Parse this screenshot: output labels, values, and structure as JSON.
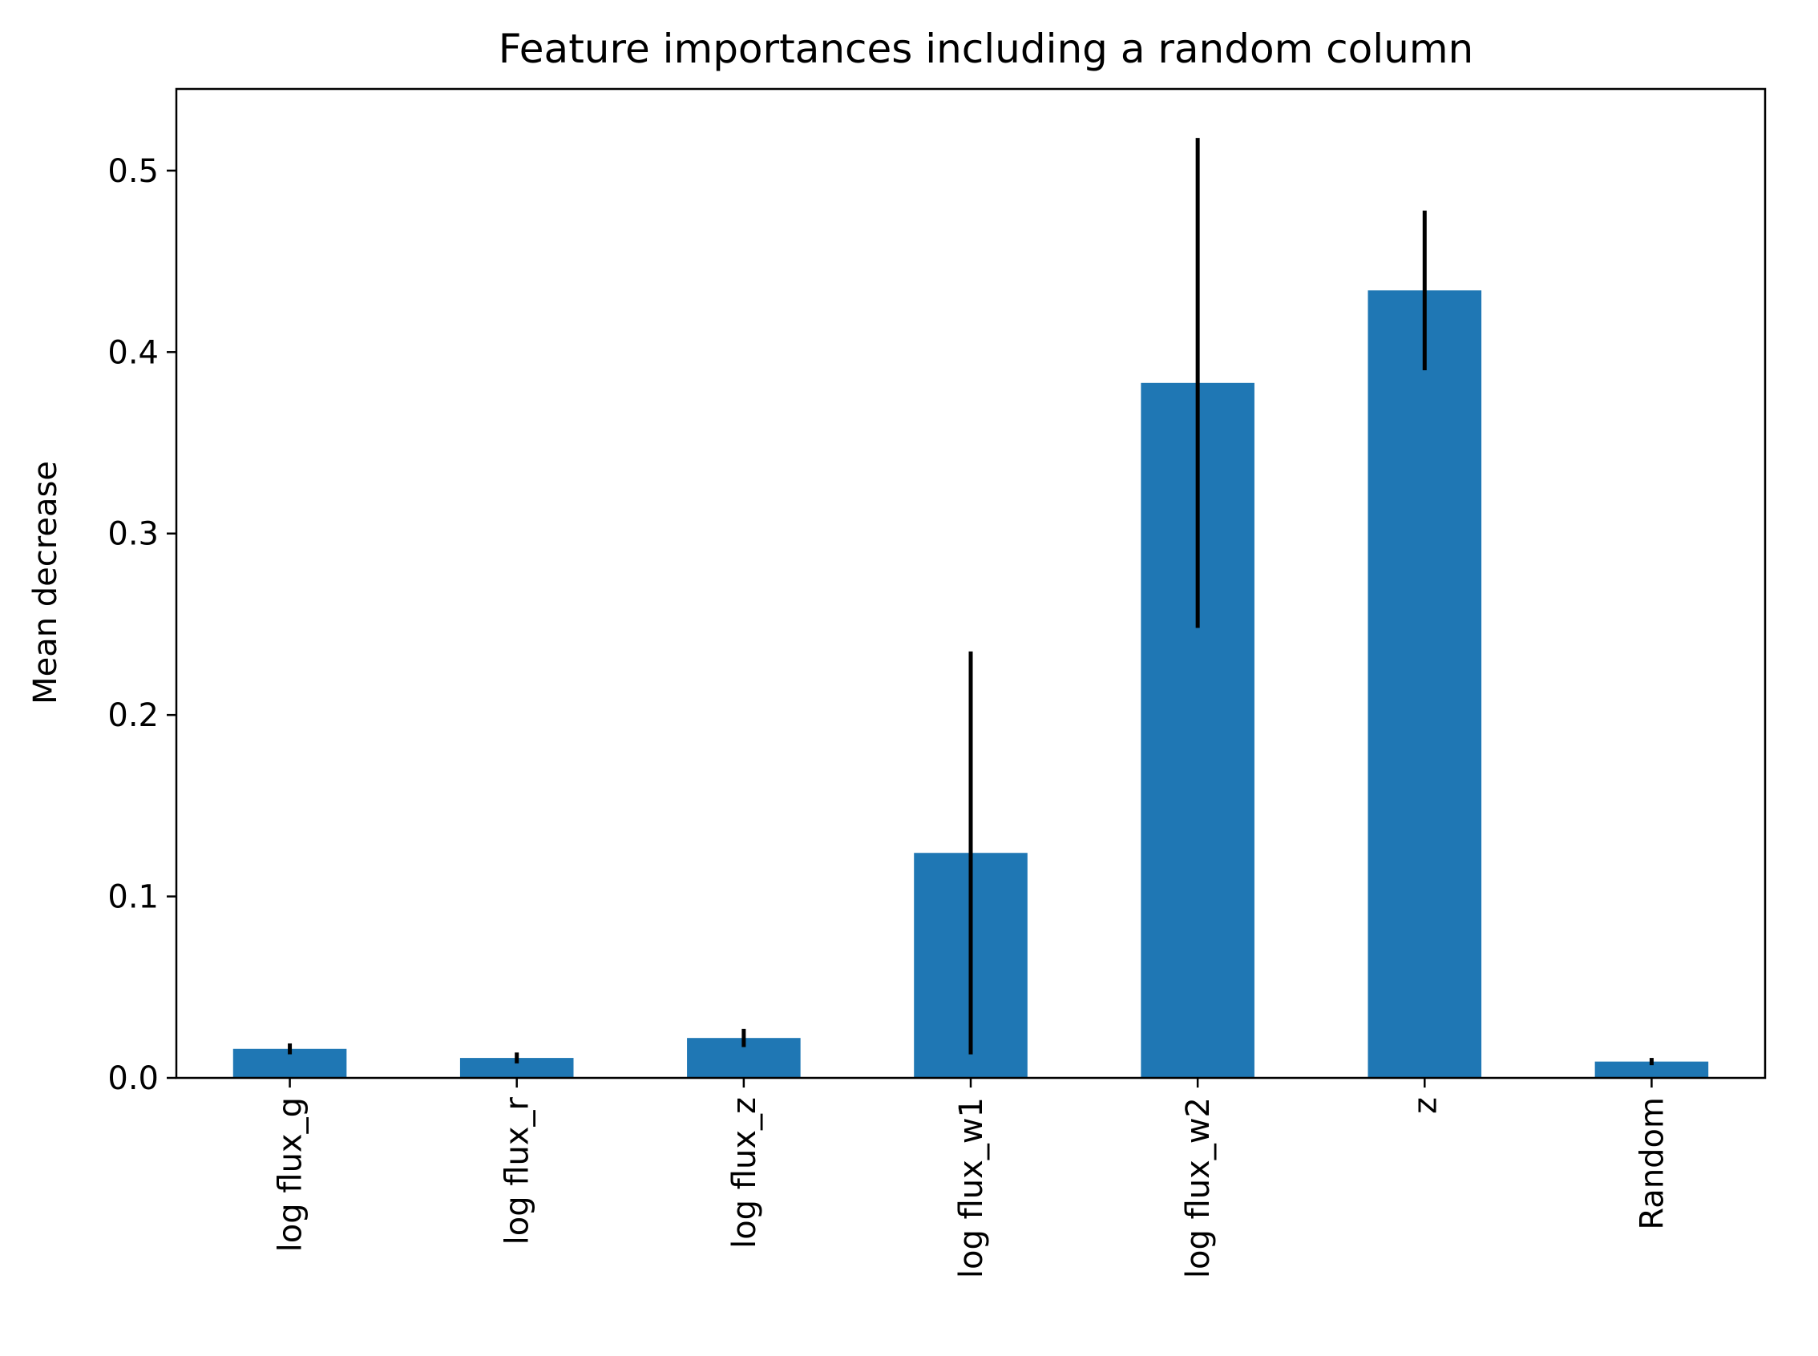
{
  "chart_data": {
    "type": "bar",
    "title": "Feature importances including a random column",
    "xlabel": "",
    "ylabel": "Mean decrease",
    "categories": [
      "log flux_g",
      "log flux_r",
      "log flux_z",
      "log flux_w1",
      "log flux_w2",
      "z",
      "Random"
    ],
    "values": [
      0.016,
      0.011,
      0.022,
      0.124,
      0.383,
      0.434,
      0.009
    ],
    "errors": [
      0.003,
      0.003,
      0.005,
      0.111,
      0.135,
      0.044,
      0.002
    ],
    "yticks": [
      0.0,
      0.1,
      0.2,
      0.3,
      0.4,
      0.5
    ],
    "ytick_labels": [
      "0.0",
      "0.1",
      "0.2",
      "0.3",
      "0.4",
      "0.5"
    ],
    "ylim": [
      0,
      0.545
    ],
    "grid": false,
    "bar_color": "#1f77b4",
    "error_color": "#000000"
  }
}
